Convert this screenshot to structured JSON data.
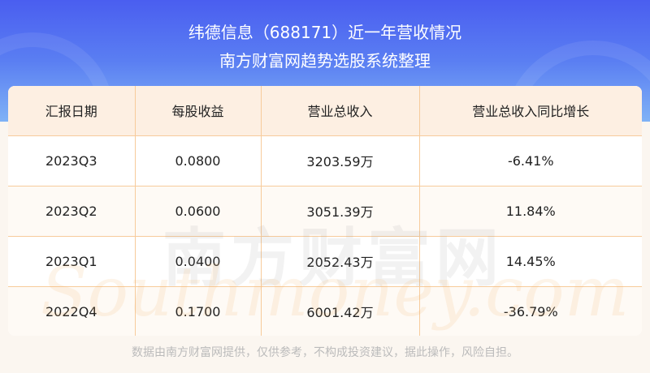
{
  "header": {
    "title": "纬德信息（688171）近一年营收情况",
    "subtitle": "南方财富网趋势选股系统整理"
  },
  "table": {
    "columns": [
      "汇报日期",
      "每股收益",
      "营业总收入",
      "营业总收入同比增长"
    ],
    "rows": [
      [
        "2023Q3",
        "0.0800",
        "3203.59万",
        "-6.41%"
      ],
      [
        "2023Q2",
        "0.0600",
        "3051.39万",
        "11.84%"
      ],
      [
        "2023Q1",
        "0.0400",
        "2052.43万",
        "14.45%"
      ],
      [
        "2022Q4",
        "0.1700",
        "6001.42万",
        "-36.79%"
      ]
    ]
  },
  "watermark": {
    "cn": "南方财富网",
    "en": "Southmoney.com"
  },
  "footer": "数据由南方财富网提供，仅供参考，不构成投资建议，据此操作，风险自担。",
  "colors": {
    "header_bg": "#4a5ef0",
    "table_header_bg": "#fdefe2",
    "border": "#f7cb9b"
  }
}
